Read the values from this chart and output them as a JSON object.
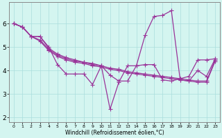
{
  "xlabel": "Windchill (Refroidissement éolien,°C)",
  "background_color": "#d4f5f0",
  "grid_color": "#aadddd",
  "line_color": "#993399",
  "xlim": [
    -0.5,
    23.5
  ],
  "ylim": [
    1.8,
    6.9
  ],
  "xticks": [
    0,
    1,
    2,
    3,
    4,
    5,
    6,
    7,
    8,
    9,
    10,
    11,
    12,
    13,
    14,
    15,
    16,
    17,
    18,
    19,
    20,
    21,
    22,
    23
  ],
  "yticks": [
    2,
    3,
    4,
    5,
    6
  ],
  "series1_x": [
    0,
    1,
    2,
    3,
    4,
    5,
    6,
    7,
    8,
    9,
    10,
    11,
    12,
    13,
    14,
    15,
    16,
    17,
    18,
    19,
    20,
    21,
    22,
    23
  ],
  "series1_y": [
    6.0,
    5.85,
    5.45,
    5.45,
    5.0,
    4.25,
    3.85,
    3.85,
    3.85,
    3.4,
    4.2,
    3.8,
    3.55,
    3.55,
    4.2,
    5.5,
    6.3,
    6.35,
    6.55,
    3.6,
    3.55,
    4.0,
    3.75,
    4.5
  ],
  "series2_x": [
    0,
    1,
    2,
    3,
    4,
    5,
    6,
    7,
    8,
    9,
    10,
    11,
    12,
    13,
    14,
    15,
    16,
    17,
    18,
    19,
    20,
    21,
    22,
    23
  ],
  "series2_y": [
    6.0,
    5.85,
    5.45,
    5.45,
    4.95,
    4.7,
    4.55,
    4.45,
    4.35,
    4.3,
    4.2,
    2.35,
    3.5,
    4.2,
    4.2,
    4.25,
    4.25,
    3.6,
    3.55,
    3.65,
    3.75,
    4.45,
    4.45,
    4.5
  ],
  "series3_x": [
    0,
    1,
    2,
    3,
    4,
    5,
    6,
    7,
    8,
    9,
    10,
    11,
    12,
    13,
    14,
    15,
    16,
    17,
    18,
    19,
    20,
    21,
    22,
    23
  ],
  "series3_y": [
    6.0,
    5.85,
    5.45,
    5.3,
    4.9,
    4.65,
    4.5,
    4.4,
    4.35,
    4.25,
    4.2,
    4.1,
    4.05,
    3.95,
    3.9,
    3.85,
    3.8,
    3.75,
    3.7,
    3.65,
    3.6,
    3.55,
    3.55,
    4.45
  ],
  "series4_x": [
    0,
    1,
    2,
    3,
    4,
    5,
    6,
    7,
    8,
    9,
    10,
    11,
    12,
    13,
    14,
    15,
    16,
    17,
    18,
    19,
    20,
    21,
    22,
    23
  ],
  "series4_y": [
    6.0,
    5.85,
    5.45,
    5.25,
    4.85,
    4.6,
    4.45,
    4.35,
    4.3,
    4.2,
    4.15,
    4.05,
    4.0,
    3.9,
    3.85,
    3.8,
    3.75,
    3.7,
    3.65,
    3.6,
    3.55,
    3.5,
    3.5,
    4.4
  ],
  "marker": "+",
  "marker_size": 4,
  "linewidth": 0.9
}
